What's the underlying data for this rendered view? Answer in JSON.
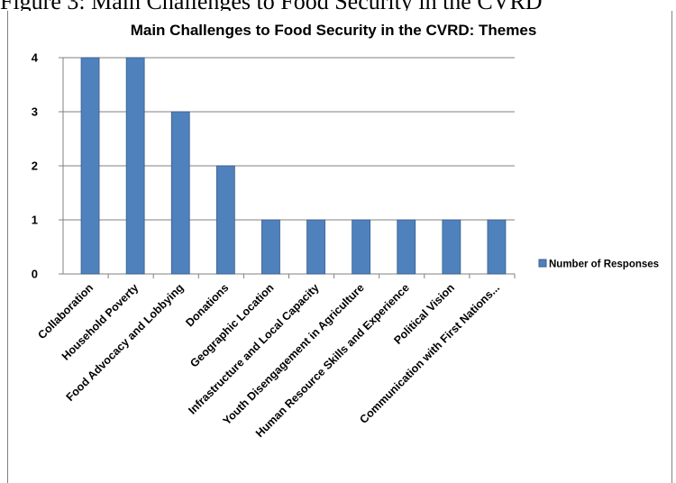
{
  "caption": "Figure 3: Main Challenges to Food Security in the CVRD",
  "chart_data": {
    "type": "bar",
    "title": "Main Challenges to Food Security in the CVRD: Themes",
    "categories": [
      "Collaboration",
      "Household Poverty",
      "Food Advocacy and Lobbying",
      "Donations",
      "Geographic Location",
      "Infrastructure and Local Capacity",
      "Youth Disengagement in Agriculture",
      "Human Resource Skills and Experience",
      "Political Vision",
      "Communication with First Nations..."
    ],
    "series": [
      {
        "name": "Number of Responses",
        "values": [
          4,
          4,
          3,
          2,
          1,
          1,
          1,
          1,
          1,
          1
        ],
        "color": "#4f81bd"
      }
    ],
    "ylim": [
      0,
      4
    ],
    "yticks": [
      "0",
      "1",
      "2",
      "3",
      "4"
    ],
    "grid": true,
    "legend_position": "right",
    "bar_color": "#4f81bd",
    "bar_border_color": "#385d8a",
    "gridline_color": "#808080"
  }
}
